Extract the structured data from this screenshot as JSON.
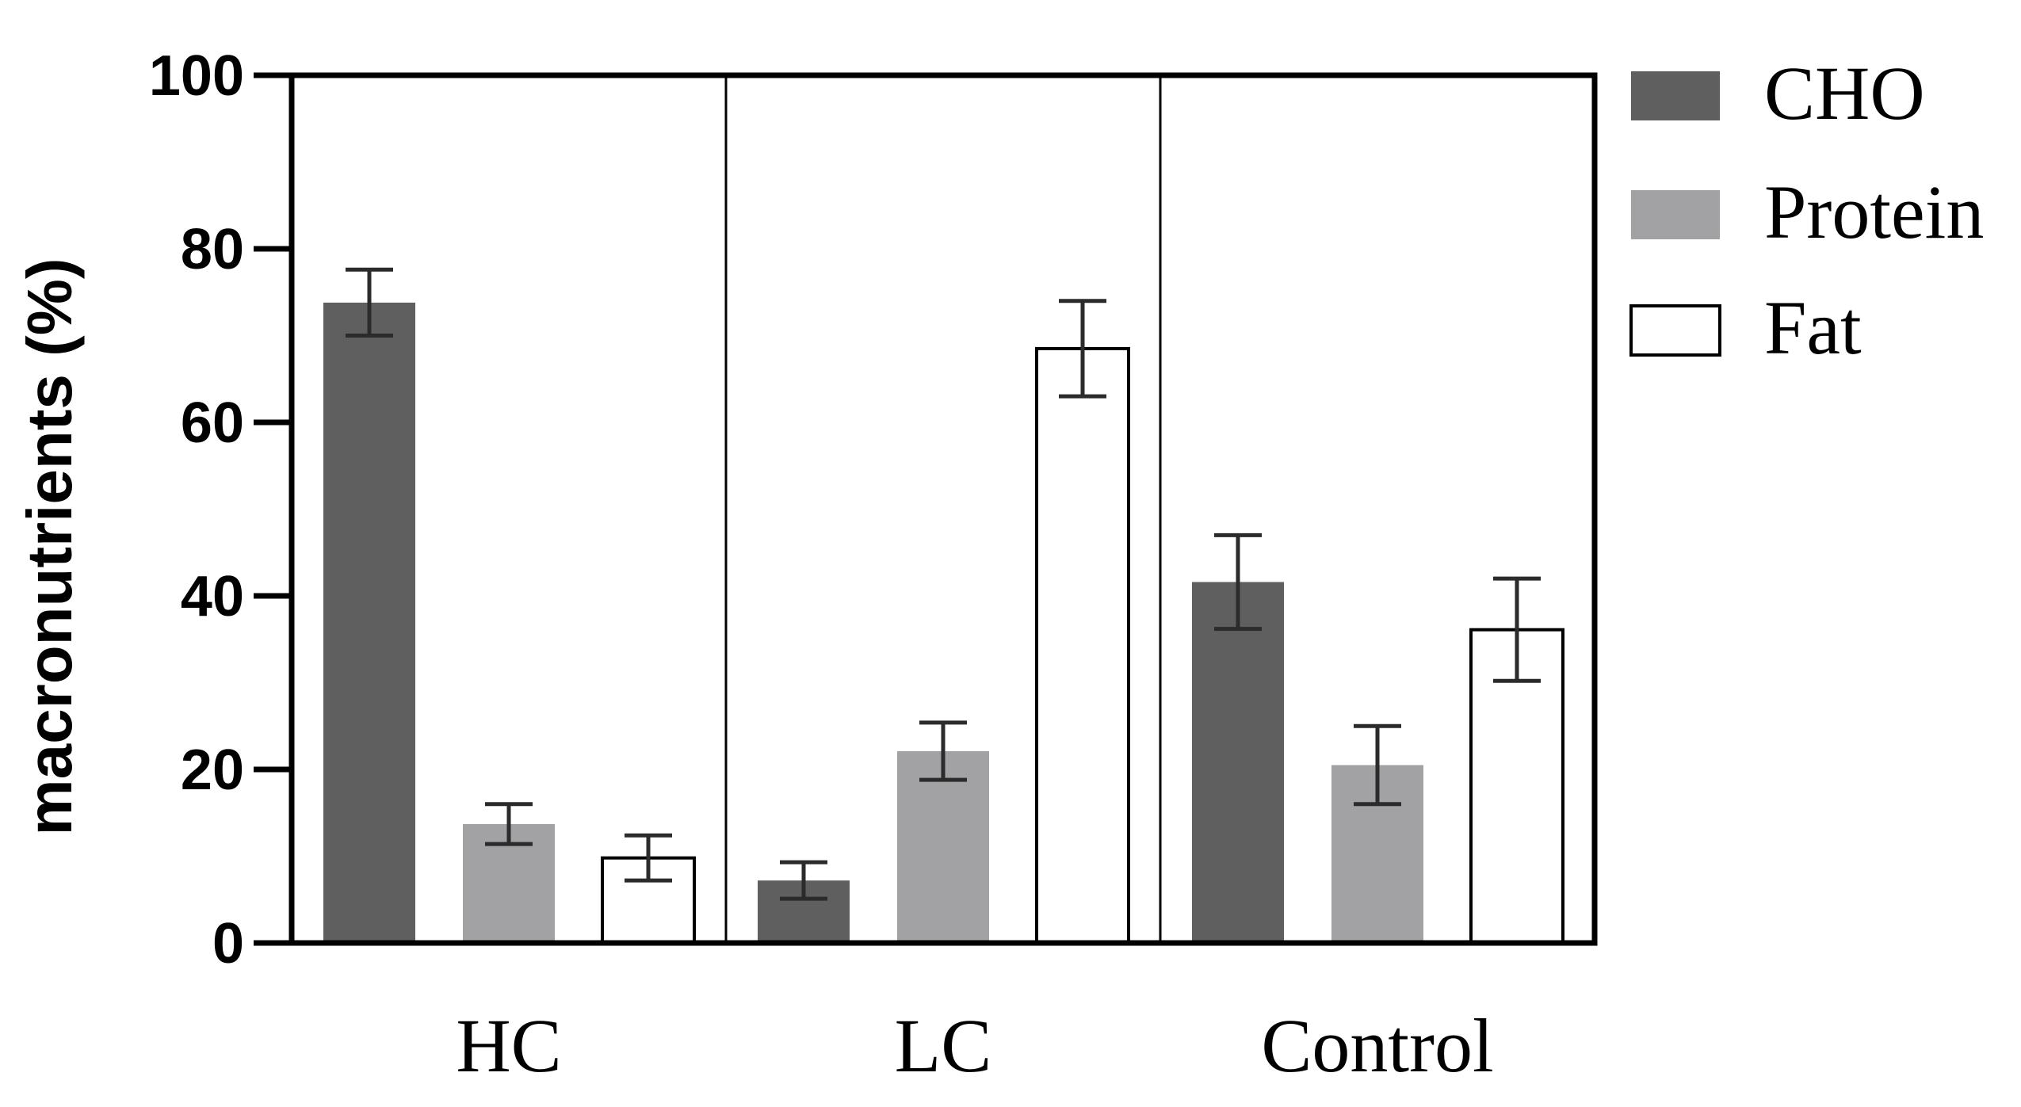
{
  "chart_data": {
    "type": "bar",
    "title": "",
    "xlabel": "",
    "ylabel": "macronutrients (%)",
    "ylim": [
      0,
      100
    ],
    "yticks": [
      "0",
      "20",
      "40",
      "60",
      "80",
      "100"
    ],
    "categories": [
      "HC",
      "LC",
      "Control"
    ],
    "series": [
      {
        "name": "CHO",
        "color": "#5f5f5f",
        "values": [
          73.8,
          7.2,
          41.6
        ],
        "errors": [
          3.8,
          2.1,
          5.4
        ]
      },
      {
        "name": "Protein",
        "color": "#a2a2a4",
        "values": [
          13.7,
          22.1,
          20.5
        ],
        "errors": [
          2.3,
          3.3,
          4.5
        ]
      },
      {
        "name": "Fat",
        "color": "#ffffff",
        "values": [
          9.8,
          68.5,
          36.1
        ],
        "errors": [
          2.6,
          5.5,
          5.9
        ]
      }
    ],
    "legend": "right",
    "grid": false
  }
}
